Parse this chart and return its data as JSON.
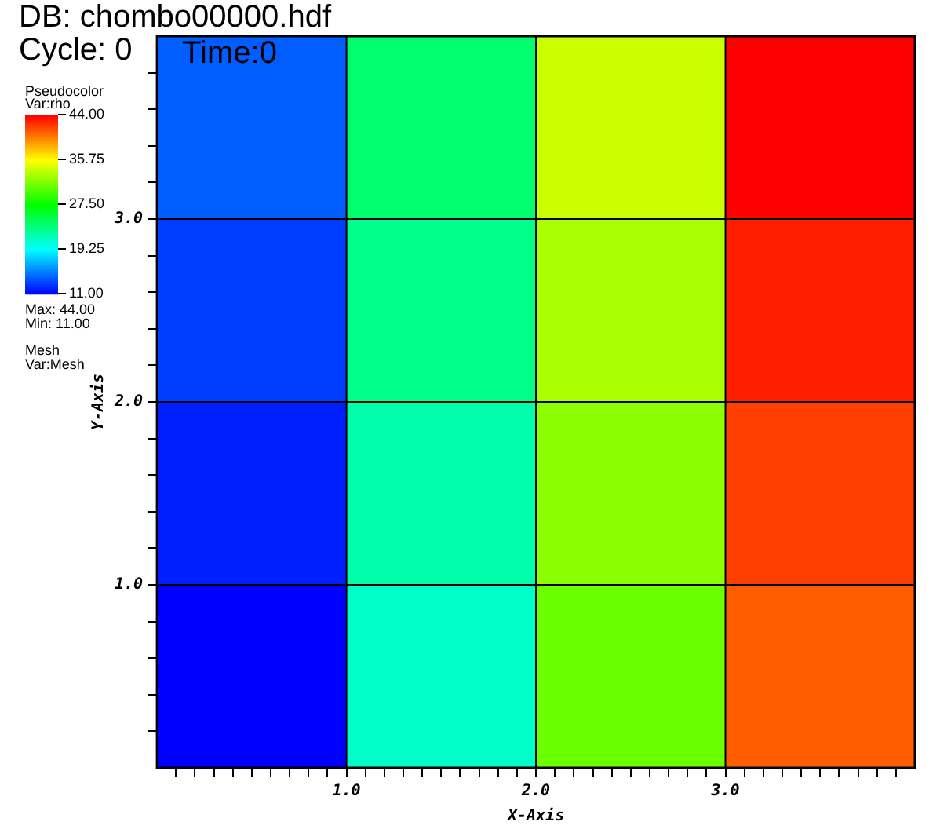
{
  "chart_data": {
    "type": "heatmap",
    "title": "DB: chombo00000.hdf",
    "subtitle": "Cycle: 0",
    "xlabel": "X-Axis",
    "ylabel": "Y-Axis",
    "clabel": "Pseudocolor",
    "annotations": [
      "Time:0",
      "Var:rho",
      "Max: 44.00",
      "Min: 11.00",
      "Mesh",
      "Var:Mesh"
    ],
    "cells": [
      [
        14,
        24,
        34,
        44
      ],
      [
        13,
        23,
        33,
        43
      ],
      [
        12,
        22,
        32,
        42
      ],
      [
        11,
        21,
        31,
        41
      ]
    ],
    "clim": [
      11,
      44
    ],
    "cticks": [
      {
        "value": 11,
        "label": "11.00"
      },
      {
        "value": 19.25,
        "label": "19.25"
      },
      {
        "value": 27.5,
        "label": "27.50"
      },
      {
        "value": 35.75,
        "label": "35.75"
      },
      {
        "value": 44,
        "label": "44.00"
      }
    ],
    "xlim": [
      0,
      4
    ],
    "ylim": [
      0,
      4
    ],
    "xticks": [
      {
        "value": 0.1,
        "label": null
      },
      {
        "value": 0.2,
        "label": null
      },
      {
        "value": 0.3,
        "label": null
      },
      {
        "value": 0.4,
        "label": null
      },
      {
        "value": 0.5,
        "label": null
      },
      {
        "value": 0.6,
        "label": null
      },
      {
        "value": 0.7,
        "label": null
      },
      {
        "value": 0.8,
        "label": null
      },
      {
        "value": 0.9,
        "label": null
      },
      {
        "value": 1,
        "label": "1.0"
      },
      {
        "value": 1.1,
        "label": null
      },
      {
        "value": 1.2,
        "label": null
      },
      {
        "value": 1.3,
        "label": null
      },
      {
        "value": 1.4,
        "label": null
      },
      {
        "value": 1.5,
        "label": null
      },
      {
        "value": 1.6,
        "label": null
      },
      {
        "value": 1.7,
        "label": null
      },
      {
        "value": 1.8,
        "label": null
      },
      {
        "value": 1.9,
        "label": null
      },
      {
        "value": 2,
        "label": "2.0"
      },
      {
        "value": 2.1,
        "label": null
      },
      {
        "value": 2.2,
        "label": null
      },
      {
        "value": 2.3,
        "label": null
      },
      {
        "value": 2.4,
        "label": null
      },
      {
        "value": 2.5,
        "label": null
      },
      {
        "value": 2.6,
        "label": null
      },
      {
        "value": 2.7,
        "label": null
      },
      {
        "value": 2.8,
        "label": null
      },
      {
        "value": 2.9,
        "label": null
      },
      {
        "value": 3,
        "label": "3.0"
      },
      {
        "value": 3.1,
        "label": null
      },
      {
        "value": 3.2,
        "label": null
      },
      {
        "value": 3.3,
        "label": null
      },
      {
        "value": 3.4,
        "label": null
      },
      {
        "value": 3.5,
        "label": null
      },
      {
        "value": 3.6,
        "label": null
      },
      {
        "value": 3.7,
        "label": null
      },
      {
        "value": 3.8,
        "label": null
      },
      {
        "value": 3.9,
        "label": null
      }
    ],
    "yticks": [
      {
        "value": 0.2,
        "label": null
      },
      {
        "value": 0.4,
        "label": null
      },
      {
        "value": 0.6,
        "label": null
      },
      {
        "value": 0.8,
        "label": null
      },
      {
        "value": 1,
        "label": "1.0"
      },
      {
        "value": 1.2,
        "label": null
      },
      {
        "value": 1.4,
        "label": null
      },
      {
        "value": 1.6,
        "label": null
      },
      {
        "value": 1.8,
        "label": null
      },
      {
        "value": 2,
        "label": "2.0"
      },
      {
        "value": 2.2,
        "label": null
      },
      {
        "value": 2.4,
        "label": null
      },
      {
        "value": 2.6,
        "label": null
      },
      {
        "value": 2.8,
        "label": null
      },
      {
        "value": 3,
        "label": "3.0"
      },
      {
        "value": 3.2,
        "label": null
      },
      {
        "value": 3.4,
        "label": null
      },
      {
        "value": 3.6,
        "label": null
      },
      {
        "value": 3.8,
        "label": null
      }
    ],
    "grid": true,
    "legend": false
  }
}
